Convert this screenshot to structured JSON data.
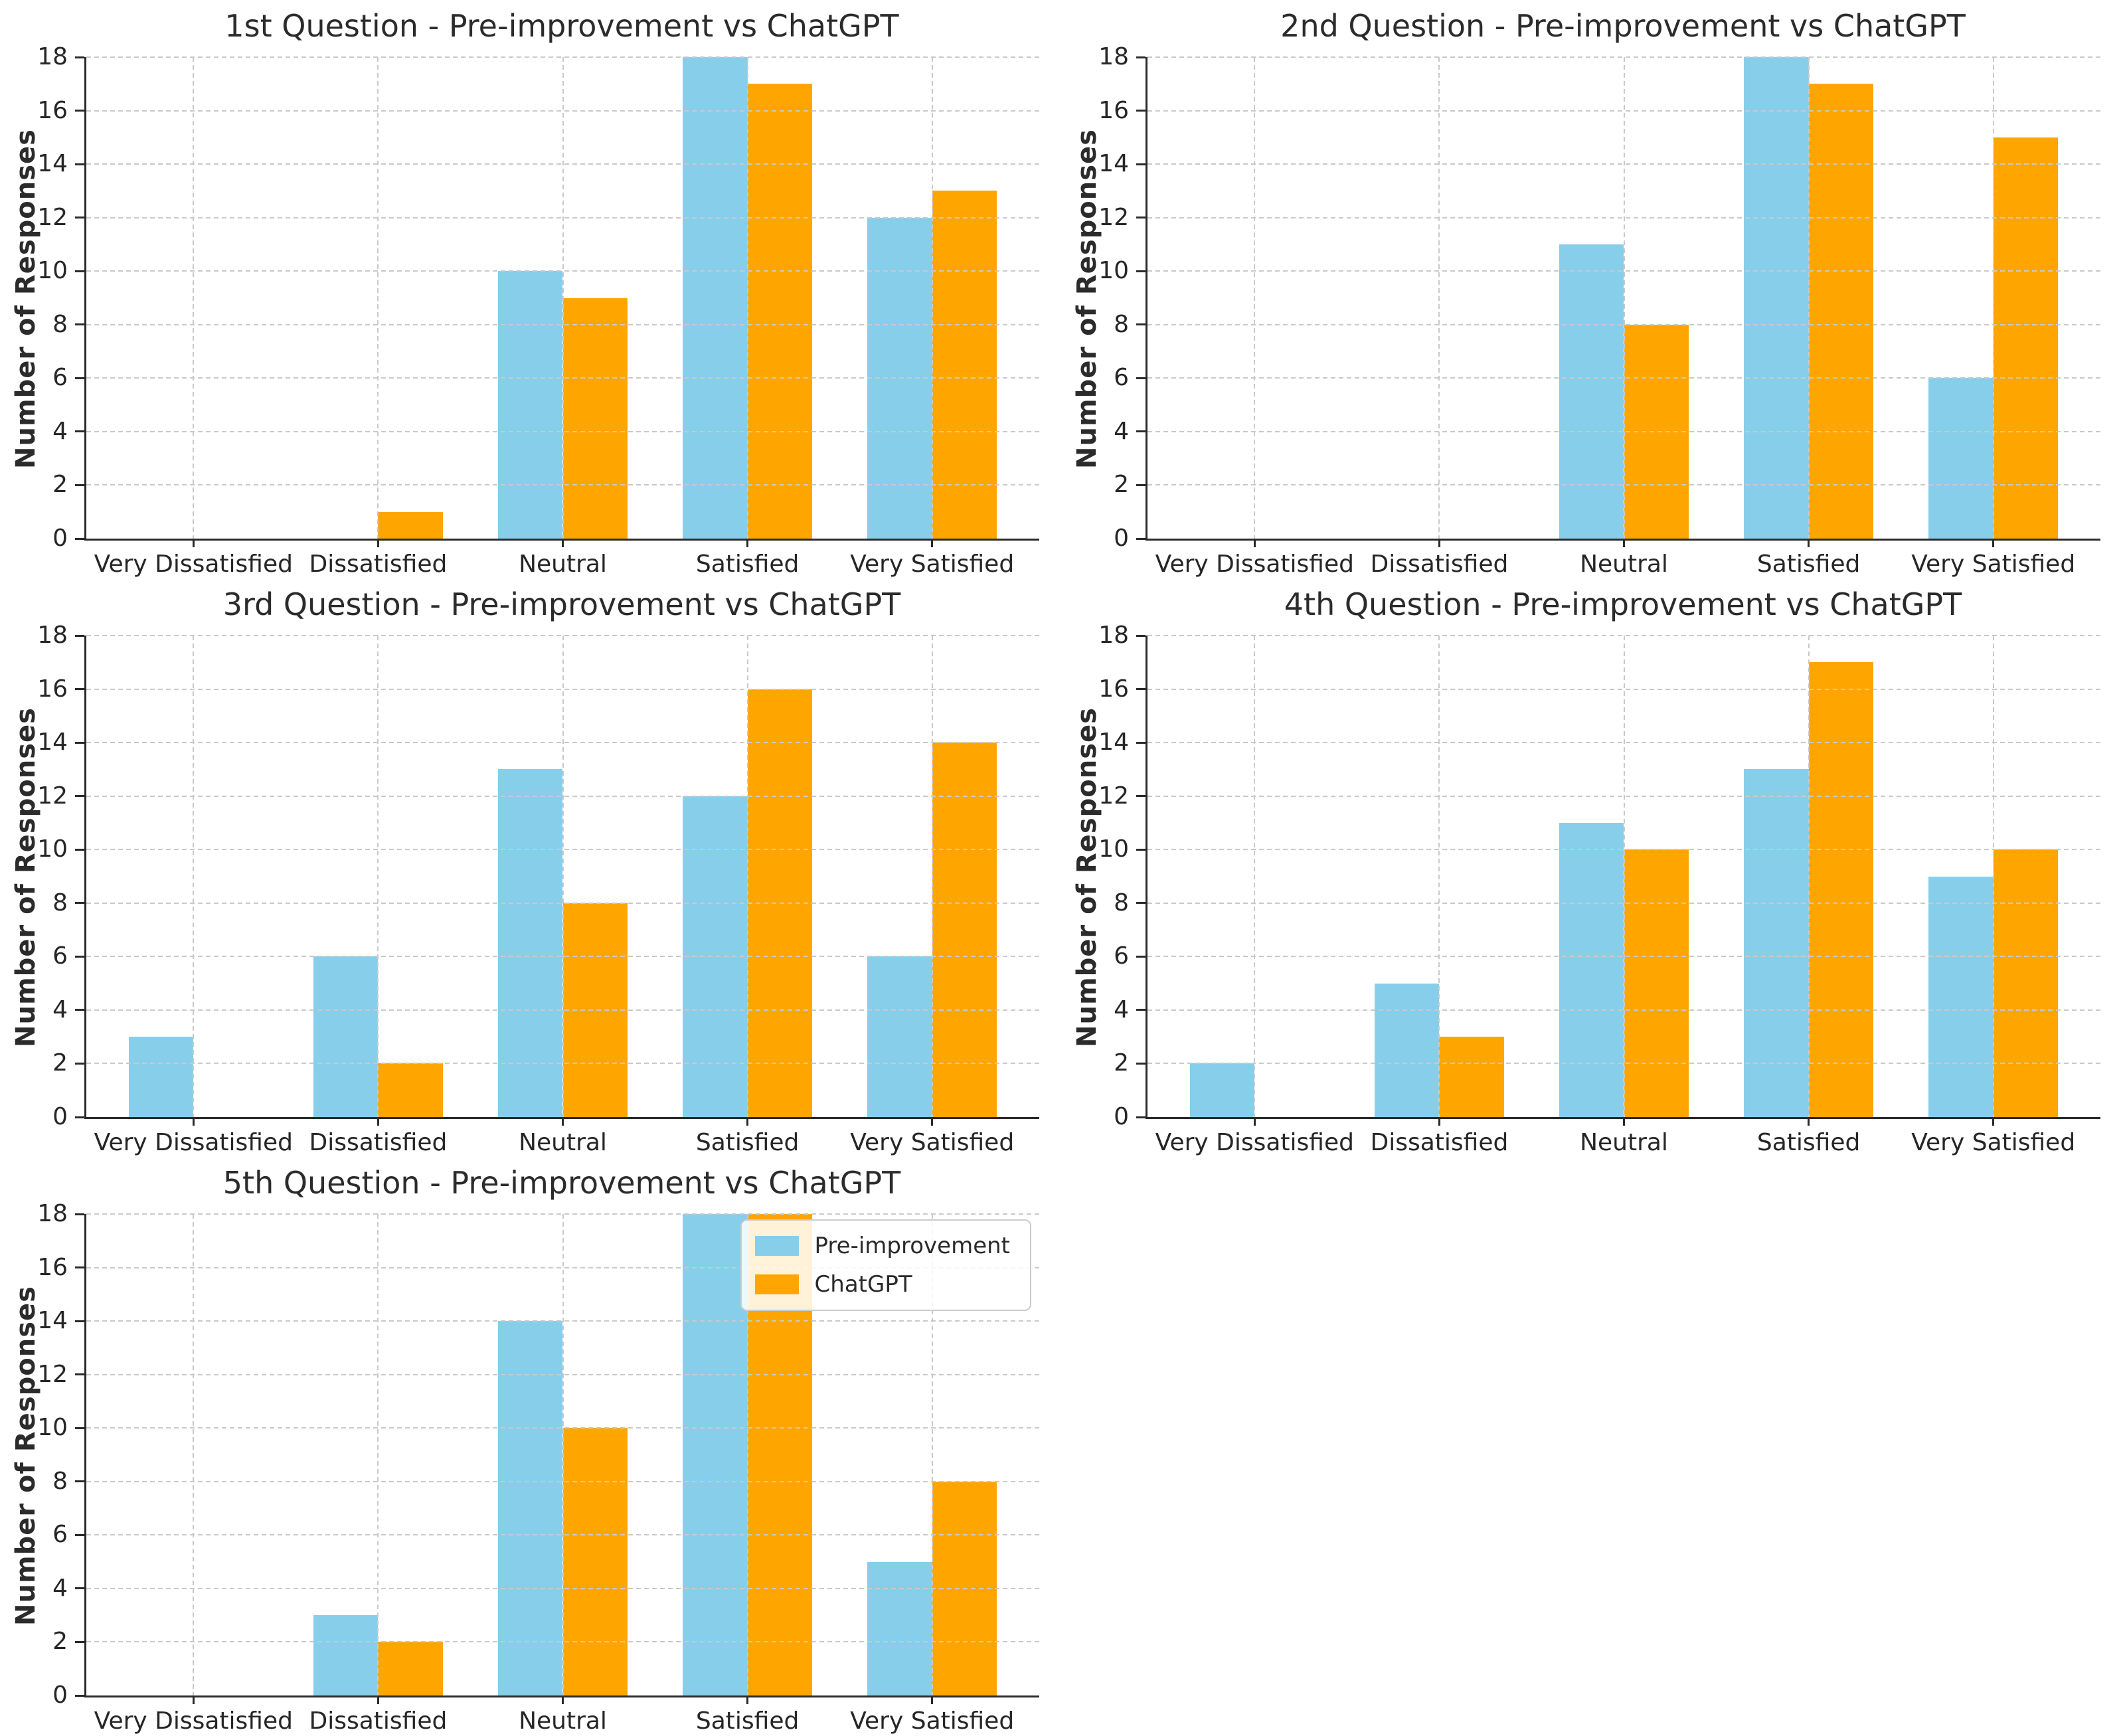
{
  "colors": {
    "pre_improvement": "#87CEEB",
    "chatgpt": "#FFA500",
    "gridline": "#c9c9c9",
    "spine": "#2a2a2a",
    "text": "#262626"
  },
  "legend": {
    "entries": [
      {
        "label": "Pre-improvement",
        "color": "#87CEEB"
      },
      {
        "label": "ChatGPT",
        "color": "#FFA500"
      }
    ],
    "position": "upper right",
    "shown_on_chart": 5
  },
  "chart_data": [
    {
      "type": "bar",
      "title": "1st Question - Pre-improvement vs ChatGPT",
      "xlabel": "",
      "ylabel": "Number of Responses",
      "ylim": [
        0,
        18
      ],
      "ytick_step": 2,
      "grid": "dashed, drawn above bars",
      "categories": [
        "Very Dissatisfied",
        "Dissatisfied",
        "Neutral",
        "Satisfied",
        "Very Satisfied"
      ],
      "series": [
        {
          "name": "Pre-improvement",
          "color": "#87CEEB",
          "values": [
            0,
            0,
            10,
            18,
            12
          ]
        },
        {
          "name": "ChatGPT",
          "color": "#FFA500",
          "values": [
            0,
            1,
            9,
            17,
            13
          ]
        }
      ],
      "legend_position": null
    },
    {
      "type": "bar",
      "title": "2nd Question - Pre-improvement vs ChatGPT",
      "xlabel": "",
      "ylabel": "Number of Responses",
      "ylim": [
        0,
        18
      ],
      "ytick_step": 2,
      "grid": "dashed, drawn above bars",
      "categories": [
        "Very Dissatisfied",
        "Dissatisfied",
        "Neutral",
        "Satisfied",
        "Very Satisfied"
      ],
      "series": [
        {
          "name": "Pre-improvement",
          "color": "#87CEEB",
          "values": [
            0,
            0,
            11,
            18,
            6
          ]
        },
        {
          "name": "ChatGPT",
          "color": "#FFA500",
          "values": [
            0,
            0,
            8,
            17,
            15
          ]
        }
      ],
      "legend_position": null
    },
    {
      "type": "bar",
      "title": "3rd Question - Pre-improvement vs ChatGPT",
      "xlabel": "",
      "ylabel": "Number of Responses",
      "ylim": [
        0,
        18
      ],
      "ytick_step": 2,
      "grid": "dashed, drawn above bars",
      "categories": [
        "Very Dissatisfied",
        "Dissatisfied",
        "Neutral",
        "Satisfied",
        "Very Satisfied"
      ],
      "series": [
        {
          "name": "Pre-improvement",
          "color": "#87CEEB",
          "values": [
            3,
            6,
            13,
            12,
            6
          ]
        },
        {
          "name": "ChatGPT",
          "color": "#FFA500",
          "values": [
            0,
            2,
            8,
            16,
            14
          ]
        }
      ],
      "legend_position": null
    },
    {
      "type": "bar",
      "title": "4th Question - Pre-improvement vs ChatGPT",
      "xlabel": "",
      "ylabel": "Number of Responses",
      "ylim": [
        0,
        18
      ],
      "ytick_step": 2,
      "grid": "dashed, drawn above bars",
      "categories": [
        "Very Dissatisfied",
        "Dissatisfied",
        "Neutral",
        "Satisfied",
        "Very Satisfied"
      ],
      "series": [
        {
          "name": "Pre-improvement",
          "color": "#87CEEB",
          "values": [
            2,
            5,
            11,
            13,
            9
          ]
        },
        {
          "name": "ChatGPT",
          "color": "#FFA500",
          "values": [
            0,
            3,
            10,
            17,
            10
          ]
        }
      ],
      "legend_position": null
    },
    {
      "type": "bar",
      "title": "5th Question - Pre-improvement vs ChatGPT",
      "xlabel": "",
      "ylabel": "Number of Responses",
      "ylim": [
        0,
        18
      ],
      "ytick_step": 2,
      "grid": "dashed, drawn above bars",
      "categories": [
        "Very Dissatisfied",
        "Dissatisfied",
        "Neutral",
        "Satisfied",
        "Very Satisfied"
      ],
      "series": [
        {
          "name": "Pre-improvement",
          "color": "#87CEEB",
          "values": [
            0,
            3,
            14,
            18,
            5
          ]
        },
        {
          "name": "ChatGPT",
          "color": "#FFA500",
          "values": [
            0,
            2,
            10,
            18,
            8
          ]
        }
      ],
      "legend_position": "upper right"
    }
  ]
}
